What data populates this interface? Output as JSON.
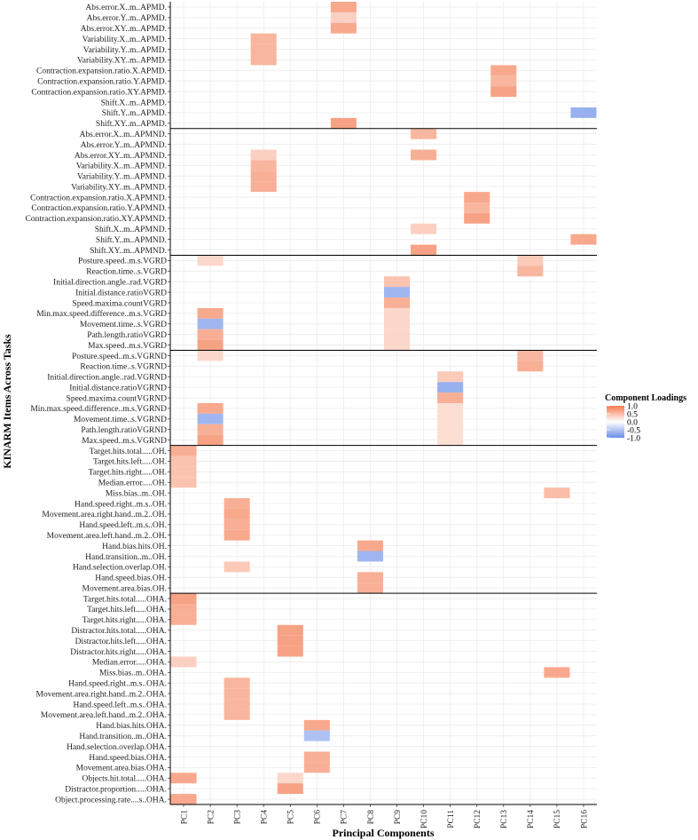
{
  "chart_data": {
    "type": "heatmap",
    "xlabel": "Principal Components",
    "ylabel": "KINARM Items Across Tasks",
    "components": [
      "PC1",
      "PC2",
      "PC3",
      "PC4",
      "PC5",
      "PC6",
      "PC7",
      "PC8",
      "PC9",
      "PC10",
      "PC11",
      "PC12",
      "PC13",
      "PC14",
      "PC15",
      "PC16"
    ],
    "legend": {
      "title": "Component Loadings",
      "ticks": [
        "1.0",
        "0.5",
        "0.0",
        "-0.5",
        "-1.0"
      ],
      "tick_values": [
        1.0,
        0.5,
        0.0,
        -0.5,
        -1.0
      ],
      "range": [
        -1.0,
        1.0
      ],
      "colors": {
        "low": "#6c8ee8",
        "mid": "#ffffff",
        "high": "#f47a50"
      }
    },
    "grid_color": "#ebebeb",
    "group_separator_color": "#000000",
    "groups": [
      {
        "name": "APMD",
        "rows": [
          {
            "label": "Abs.error.X..m..APMD.",
            "loadings": [
              [
                7,
                0.65
              ]
            ]
          },
          {
            "label": "Abs.error.Y..m..APMD.",
            "loadings": [
              [
                7,
                0.35
              ]
            ]
          },
          {
            "label": "Abs.error.XY..m..APMD.",
            "loadings": [
              [
                7,
                0.65
              ]
            ]
          },
          {
            "label": "Variability.X..m..APMD.",
            "loadings": [
              [
                4,
                0.55
              ]
            ]
          },
          {
            "label": "Variability.Y..m..APMD.",
            "loadings": [
              [
                4,
                0.55
              ]
            ]
          },
          {
            "label": "Variability.XY..m..APMD.",
            "loadings": [
              [
                4,
                0.55
              ]
            ]
          },
          {
            "label": "Contraction.expansion.ratio.X.APMD.",
            "loadings": [
              [
                13,
                0.65
              ]
            ]
          },
          {
            "label": "Contraction.expansion.ratio.Y.APMD.",
            "loadings": [
              [
                13,
                0.55
              ]
            ]
          },
          {
            "label": "Contraction.expansion.ratio.XY.APMD.",
            "loadings": [
              [
                13,
                0.7
              ]
            ]
          },
          {
            "label": "Shift.X..m..APMD.",
            "loadings": []
          },
          {
            "label": "Shift.Y..m..APMD.",
            "loadings": [
              [
                16,
                -0.7
              ]
            ]
          },
          {
            "label": "Shift.XY..m..APMD.",
            "loadings": [
              [
                7,
                0.7
              ]
            ]
          }
        ]
      },
      {
        "name": "APMND",
        "rows": [
          {
            "label": "Abs.error.X..m..APMND.",
            "loadings": [
              [
                10,
                0.55
              ]
            ]
          },
          {
            "label": "Abs.error.Y..m..APMND.",
            "loadings": []
          },
          {
            "label": "Abs.error.XY..m..APMND.",
            "loadings": [
              [
                4,
                0.35
              ],
              [
                10,
                0.6
              ]
            ]
          },
          {
            "label": "Variability.X..m..APMND.",
            "loadings": [
              [
                4,
                0.55
              ]
            ]
          },
          {
            "label": "Variability.Y..m..APMND.",
            "loadings": [
              [
                4,
                0.6
              ]
            ]
          },
          {
            "label": "Variability.XY..m..APMND.",
            "loadings": [
              [
                4,
                0.6
              ]
            ]
          },
          {
            "label": "Contraction.expansion.ratio.X.APMND.",
            "loadings": [
              [
                12,
                0.65
              ]
            ]
          },
          {
            "label": "Contraction.expansion.ratio.Y.APMND.",
            "loadings": [
              [
                12,
                0.55
              ]
            ]
          },
          {
            "label": "Contraction.expansion.ratio.XY.APMND.",
            "loadings": [
              [
                12,
                0.7
              ]
            ]
          },
          {
            "label": "Shift.X..m..APMND.",
            "loadings": [
              [
                10,
                0.35
              ]
            ]
          },
          {
            "label": "Shift.Y..m..APMND.",
            "loadings": [
              [
                16,
                0.65
              ]
            ]
          },
          {
            "label": "Shift.XY..m..APMND.",
            "loadings": [
              [
                10,
                0.7
              ]
            ]
          }
        ]
      },
      {
        "name": "VGRD",
        "rows": [
          {
            "label": "Posture.speed..m.s.VGRD",
            "loadings": [
              [
                2,
                0.3
              ],
              [
                14,
                0.4
              ]
            ]
          },
          {
            "label": "Reaction.time..s.VGRD",
            "loadings": [
              [
                14,
                0.55
              ]
            ]
          },
          {
            "label": "Initial.direction.angle..rad.VGRD",
            "loadings": [
              [
                9,
                0.45
              ]
            ]
          },
          {
            "label": "Initial.distance.ratioVGRD",
            "loadings": [
              [
                9,
                -0.65
              ]
            ]
          },
          {
            "label": "Speed.maxima.countVGRD",
            "loadings": [
              [
                9,
                0.6
              ]
            ]
          },
          {
            "label": "Min.max.speed.difference..m.s.VGRD",
            "loadings": [
              [
                2,
                0.65
              ],
              [
                9,
                0.3
              ]
            ]
          },
          {
            "label": "Movement.time..s.VGRD",
            "loadings": [
              [
                2,
                -0.65
              ],
              [
                9,
                0.3
              ]
            ]
          },
          {
            "label": "Path.length.ratioVGRD",
            "loadings": [
              [
                2,
                0.6
              ],
              [
                9,
                0.3
              ]
            ]
          },
          {
            "label": "Max.speed..m.s.VGRD",
            "loadings": [
              [
                2,
                0.7
              ],
              [
                9,
                0.3
              ]
            ]
          }
        ]
      },
      {
        "name": "VGRND",
        "rows": [
          {
            "label": "Posture.speed..m.s.VGRND",
            "loadings": [
              [
                2,
                0.3
              ],
              [
                14,
                0.55
              ]
            ]
          },
          {
            "label": "Reaction.time..s.VGRND",
            "loadings": [
              [
                14,
                0.6
              ]
            ]
          },
          {
            "label": "Initial.direction.angle..rad.VGRND",
            "loadings": [
              [
                11,
                0.4
              ]
            ]
          },
          {
            "label": "Initial.distance.ratioVGRND",
            "loadings": [
              [
                11,
                -0.7
              ]
            ]
          },
          {
            "label": "Speed.maxima.countVGRND",
            "loadings": [
              [
                11,
                0.6
              ]
            ]
          },
          {
            "label": "Min.max.speed.difference..m.s.VGRND",
            "loadings": [
              [
                2,
                0.65
              ],
              [
                11,
                0.25
              ]
            ]
          },
          {
            "label": "Movement.time..s.VGRND",
            "loadings": [
              [
                2,
                -0.65
              ],
              [
                11,
                0.25
              ]
            ]
          },
          {
            "label": "Path.length.ratioVGRND",
            "loadings": [
              [
                2,
                0.6
              ],
              [
                11,
                0.25
              ]
            ]
          },
          {
            "label": "Max.speed..m.s.VGRND",
            "loadings": [
              [
                2,
                0.7
              ],
              [
                11,
                0.25
              ]
            ]
          }
        ]
      },
      {
        "name": "OH",
        "rows": [
          {
            "label": "Target.hits.total.....OH.",
            "loadings": [
              [
                1,
                0.6
              ]
            ]
          },
          {
            "label": "Target.hits.left.....OH.",
            "loadings": [
              [
                1,
                0.45
              ]
            ]
          },
          {
            "label": "Target.hits.right.....OH.",
            "loadings": [
              [
                1,
                0.45
              ]
            ]
          },
          {
            "label": "Median.error.....OH.",
            "loadings": [
              [
                1,
                0.45
              ]
            ]
          },
          {
            "label": "Miss.bias..m..OH.",
            "loadings": [
              [
                15,
                0.5
              ]
            ]
          },
          {
            "label": "Hand.speed.right..m.s..OH.",
            "loadings": [
              [
                3,
                0.6
              ]
            ]
          },
          {
            "label": "Movement.area.right.hand..m.2..OH.",
            "loadings": [
              [
                3,
                0.65
              ]
            ]
          },
          {
            "label": "Hand.speed.left..m.s..OH.",
            "loadings": [
              [
                3,
                0.6
              ]
            ]
          },
          {
            "label": "Movement.area.left.hand..m.2..OH.",
            "loadings": [
              [
                3,
                0.65
              ]
            ]
          },
          {
            "label": "Hand.bias.hits.OH.",
            "loadings": [
              [
                8,
                0.65
              ]
            ]
          },
          {
            "label": "Hand.transition..m..OH.",
            "loadings": [
              [
                8,
                -0.65
              ]
            ]
          },
          {
            "label": "Hand.selection.overlap.OH.",
            "loadings": [
              [
                3,
                0.4
              ]
            ]
          },
          {
            "label": "Hand.speed.bias.OH.",
            "loadings": [
              [
                8,
                0.6
              ]
            ]
          },
          {
            "label": "Movement.area.bias.OH.",
            "loadings": [
              [
                8,
                0.6
              ]
            ]
          }
        ]
      },
      {
        "name": "OHA",
        "rows": [
          {
            "label": "Target.hits.total.....OHA.",
            "loadings": [
              [
                1,
                0.7
              ]
            ]
          },
          {
            "label": "Target.hits.left.....OHA.",
            "loadings": [
              [
                1,
                0.6
              ]
            ]
          },
          {
            "label": "Target.hits.right.....OHA.",
            "loadings": [
              [
                1,
                0.6
              ]
            ]
          },
          {
            "label": "Distractor.hits.total.....OHA.",
            "loadings": [
              [
                5,
                0.7
              ]
            ]
          },
          {
            "label": "Distractor.hits.left.....OHA.",
            "loadings": [
              [
                5,
                0.7
              ]
            ]
          },
          {
            "label": "Distractor.hits.right.....OHA.",
            "loadings": [
              [
                5,
                0.7
              ]
            ]
          },
          {
            "label": "Median.error.....OHA.",
            "loadings": [
              [
                1,
                0.35
              ]
            ]
          },
          {
            "label": "Miss.bias..m..OHA.",
            "loadings": [
              [
                15,
                0.65
              ]
            ]
          },
          {
            "label": "Hand.speed.right..m.s..OHA.",
            "loadings": [
              [
                3,
                0.55
              ]
            ]
          },
          {
            "label": "Movement.area.right.hand..m.2..OHA.",
            "loadings": [
              [
                3,
                0.55
              ]
            ]
          },
          {
            "label": "Hand.speed.left..m.s..OHA.",
            "loadings": [
              [
                3,
                0.55
              ]
            ]
          },
          {
            "label": "Movement.area.left.hand..m.2..OHA.",
            "loadings": [
              [
                3,
                0.55
              ]
            ]
          },
          {
            "label": "Hand.bias.hits.OHA.",
            "loadings": [
              [
                6,
                0.65
              ]
            ]
          },
          {
            "label": "Hand.transition..m..OHA.",
            "loadings": [
              [
                6,
                -0.55
              ]
            ]
          },
          {
            "label": "Hand.selection.overlap.OHA.",
            "loadings": []
          },
          {
            "label": "Hand.speed.bias.OHA.",
            "loadings": [
              [
                6,
                0.6
              ]
            ]
          },
          {
            "label": "Movement.area.bias.OHA.",
            "loadings": [
              [
                6,
                0.6
              ]
            ]
          },
          {
            "label": "Objects.hit.total.....OHA.",
            "loadings": [
              [
                1,
                0.65
              ],
              [
                5,
                0.3
              ]
            ]
          },
          {
            "label": "Distractor.proportion.....OHA.",
            "loadings": [
              [
                5,
                0.7
              ]
            ]
          },
          {
            "label": "Object.processing.rate....s..OHA.",
            "loadings": [
              [
                1,
                0.65
              ]
            ]
          }
        ]
      }
    ]
  }
}
